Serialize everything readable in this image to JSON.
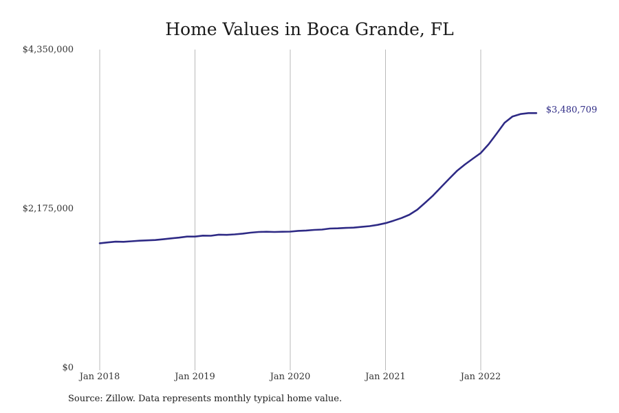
{
  "chart_data": {
    "type": "line",
    "title": "Home Values in Boca Grande, FL",
    "xlabel": "",
    "ylabel": "",
    "ylim": [
      0,
      4350000
    ],
    "y_ticks": [
      {
        "value": 0,
        "label": "$0"
      },
      {
        "value": 2175000,
        "label": "$2,175,000"
      },
      {
        "value": 4350000,
        "label": "$4,350,000"
      }
    ],
    "x_ticks": [
      {
        "date": "2018-01",
        "label": "Jan 2018"
      },
      {
        "date": "2019-01",
        "label": "Jan 2019"
      },
      {
        "date": "2020-01",
        "label": "Jan 2020"
      },
      {
        "date": "2021-01",
        "label": "Jan 2021"
      },
      {
        "date": "2022-01",
        "label": "Jan 2022"
      }
    ],
    "x_range": [
      "2018-01",
      "2022-12"
    ],
    "grid": {
      "vertical": true,
      "horizontal": false
    },
    "line_color": "#2e2a85",
    "series": [
      {
        "x": [
          "2018-01",
          "2018-02",
          "2018-03",
          "2018-04",
          "2018-05",
          "2018-06",
          "2018-07",
          "2018-08",
          "2018-09",
          "2018-10",
          "2018-11",
          "2018-12",
          "2019-01",
          "2019-02",
          "2019-03",
          "2019-04",
          "2019-05",
          "2019-06",
          "2019-07",
          "2019-08",
          "2019-09",
          "2019-10",
          "2019-11",
          "2019-12",
          "2020-01",
          "2020-02",
          "2020-03",
          "2020-04",
          "2020-05",
          "2020-06",
          "2020-07",
          "2020-08",
          "2020-09",
          "2020-10",
          "2020-11",
          "2020-12",
          "2021-01",
          "2021-02",
          "2021-03",
          "2021-04",
          "2021-05",
          "2021-06",
          "2021-07",
          "2021-08",
          "2021-09",
          "2021-10",
          "2021-11",
          "2021-12",
          "2022-01",
          "2022-02",
          "2022-03",
          "2022-04",
          "2022-05",
          "2022-06",
          "2022-07",
          "2022-08"
        ],
        "values": [
          1700000,
          1712000,
          1722000,
          1720000,
          1728000,
          1735000,
          1740000,
          1745000,
          1755000,
          1767000,
          1778000,
          1792000,
          1792000,
          1805000,
          1803000,
          1818000,
          1815000,
          1822000,
          1832000,
          1845000,
          1855000,
          1858000,
          1855000,
          1858000,
          1860000,
          1870000,
          1875000,
          1883000,
          1888000,
          1902000,
          1905000,
          1910000,
          1914000,
          1925000,
          1935000,
          1952000,
          1975000,
          2008000,
          2045000,
          2090000,
          2160000,
          2255000,
          2355000,
          2468000,
          2580000,
          2690000,
          2778000,
          2858000,
          2935000,
          3055000,
          3200000,
          3348000,
          3435000,
          3468000,
          3480709,
          3480709
        ],
        "end_label": "$3,480,709"
      }
    ],
    "annotations": [
      "$3,480,709"
    ]
  },
  "source_note": "Source: Zillow. Data represents monthly typical home value."
}
